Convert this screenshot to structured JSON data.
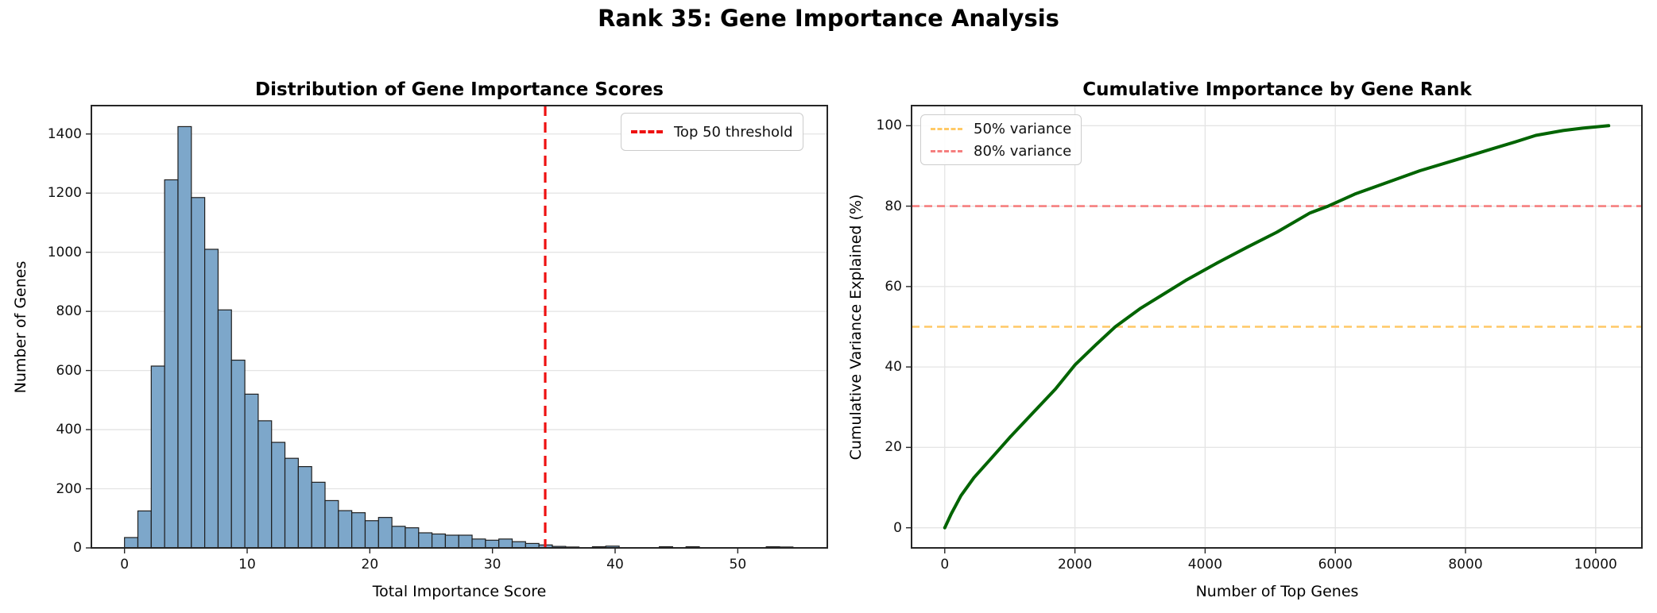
{
  "figure": {
    "title": "Rank 35: Gene Importance Analysis"
  },
  "colors": {
    "bar_fill": "#7da7ca",
    "bar_edge": "#1f1f1f",
    "threshold_red": "#ee1111",
    "curve_green": "#006400",
    "variance50_orange": "#ffc966",
    "variance80_salmon": "#f57f7f",
    "grid": "#e4e4e4",
    "spine": "#262626"
  },
  "chart_data": [
    {
      "type": "bar",
      "subtype": "histogram",
      "title": "Distribution of Gene Importance Scores",
      "xlabel": "Total Importance Score",
      "ylabel": "Number of Genes",
      "xlim": [
        -2.7,
        57.3
      ],
      "ylim": [
        0,
        1496
      ],
      "xticks": [
        0,
        10,
        20,
        30,
        40,
        50
      ],
      "yticks": [
        0,
        200,
        400,
        600,
        800,
        1000,
        1200,
        1400
      ],
      "grid": "y",
      "bin_start": 0,
      "bin_width": 1.09,
      "counts": [
        35,
        125,
        615,
        1245,
        1425,
        1185,
        1010,
        805,
        635,
        520,
        430,
        357,
        303,
        275,
        222,
        160,
        126,
        119,
        92,
        103,
        73,
        68,
        51,
        47,
        43,
        43,
        30,
        26,
        30,
        21,
        15,
        10,
        5,
        3,
        0,
        4,
        6,
        0,
        0,
        0,
        4,
        0,
        4,
        0,
        0,
        0,
        0,
        0,
        4,
        3
      ],
      "threshold": {
        "x": 34.3,
        "label": "Top 50 threshold"
      }
    },
    {
      "type": "line",
      "title": "Cumulative Importance by Gene Rank",
      "xlabel": "Number of Top Genes",
      "ylabel": "Cumulative Variance Explained (%)",
      "xlim": [
        -510,
        10710
      ],
      "ylim": [
        -5,
        105
      ],
      "xticks": [
        0,
        2000,
        4000,
        6000,
        8000,
        10000
      ],
      "yticks": [
        0,
        20,
        40,
        60,
        80,
        100
      ],
      "grid": "xy",
      "points": [
        [
          0,
          0
        ],
        [
          100,
          3.5
        ],
        [
          250,
          8
        ],
        [
          450,
          12.5
        ],
        [
          700,
          17
        ],
        [
          1000,
          22.5
        ],
        [
          1350,
          28.5
        ],
        [
          1700,
          34.5
        ],
        [
          2000,
          40.5
        ],
        [
          2320,
          45.5
        ],
        [
          2620,
          50
        ],
        [
          3000,
          54.5
        ],
        [
          3350,
          58
        ],
        [
          3700,
          61.5
        ],
        [
          4200,
          66
        ],
        [
          4650,
          69.8
        ],
        [
          5100,
          73.5
        ],
        [
          5610,
          78.3
        ],
        [
          5890,
          80
        ],
        [
          6300,
          83
        ],
        [
          6850,
          86.2
        ],
        [
          7300,
          88.8
        ],
        [
          7850,
          91.5
        ],
        [
          8400,
          94.2
        ],
        [
          8750,
          95.9
        ],
        [
          9080,
          97.6
        ],
        [
          9500,
          98.8
        ],
        [
          9800,
          99.4
        ],
        [
          10200,
          100
        ]
      ],
      "hlines": [
        {
          "y": 50,
          "label": "50% variance"
        },
        {
          "y": 80,
          "label": "80% variance"
        }
      ]
    }
  ]
}
